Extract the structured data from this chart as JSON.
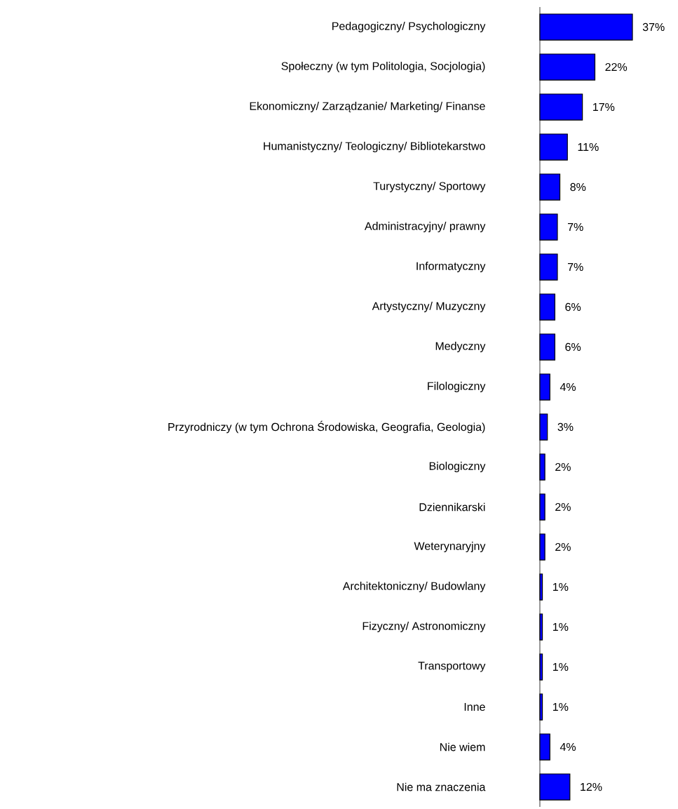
{
  "chart_data": {
    "type": "bar",
    "orientation": "horizontal",
    "color": "#0000ff",
    "categories": [
      "Pedagogiczny/ Psychologiczny",
      "Społeczny (w tym Politologia, Socjologia)",
      "Ekonomiczny/ Zarządzanie/ Marketing/ Finanse",
      "Humanistyczny/ Teologiczny/ Bibliotekarstwo",
      "Turystyczny/ Sportowy",
      "Administracyjny/ prawny",
      "Informatyczny",
      "Artystyczny/ Muzyczny",
      "Medyczny",
      "Filologiczny",
      "Przyrodniczy (w tym Ochrona Środowiska, Geografia, Geologia)",
      "Biologiczny",
      "Dziennikarski",
      "Weterynaryjny",
      "Architektoniczny/ Budowlany",
      "Fizyczny/ Astronomiczny",
      "Transportowy",
      "Inne",
      "Nie wiem",
      "Nie ma znaczenia"
    ],
    "values": [
      37,
      22,
      17,
      11,
      8,
      7,
      7,
      6,
      6,
      4,
      3,
      2,
      2,
      2,
      1,
      1,
      1,
      1,
      4,
      12
    ],
    "value_labels": [
      "37%",
      "22%",
      "17%",
      "11%",
      "8%",
      "7%",
      "7%",
      "6%",
      "6%",
      "4%",
      "3%",
      "2%",
      "2%",
      "2%",
      "1%",
      "1%",
      "1%",
      "1%",
      "4%",
      "12%"
    ]
  }
}
